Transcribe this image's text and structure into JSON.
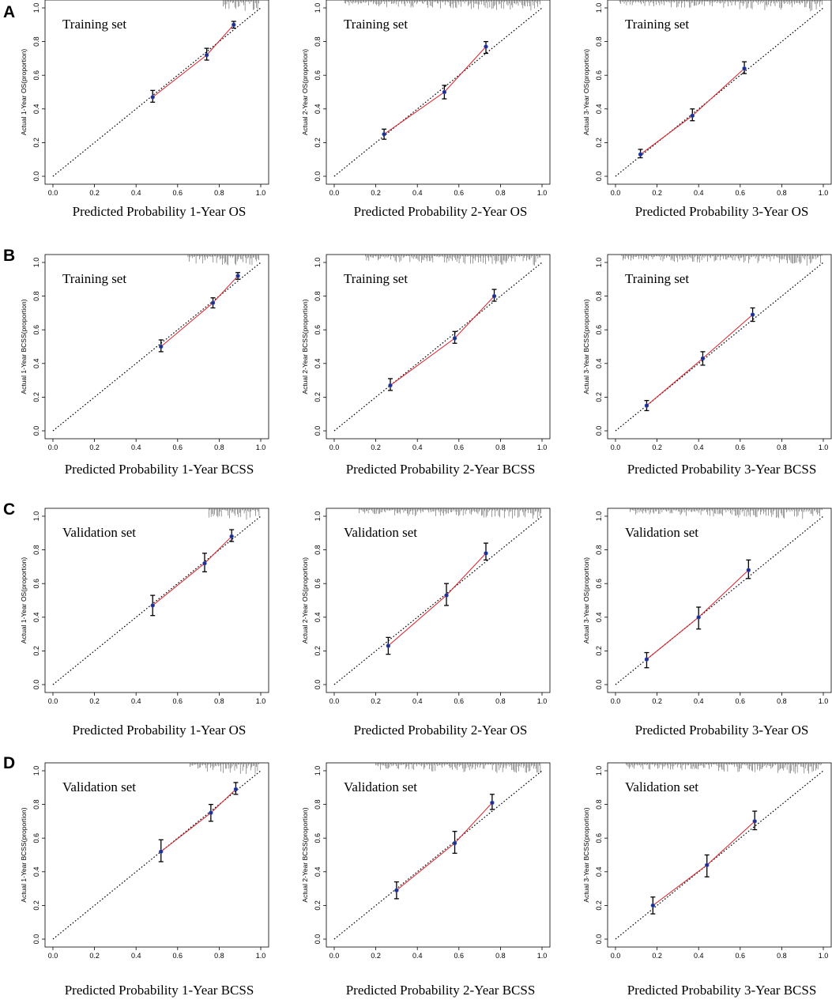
{
  "chart_data": [
    {
      "row": "A",
      "col": 0,
      "type": "line",
      "title": "Training set",
      "xlabel": "Predicted  Probability 1-Year OS",
      "ylabel": "Actual 1-Year OS(proportion)",
      "xlim": [
        0,
        1
      ],
      "ylim": [
        0,
        1
      ],
      "x": [
        0.48,
        0.74,
        0.87
      ],
      "y": [
        0.47,
        0.72,
        0.9
      ],
      "err_low": [
        0.44,
        0.69,
        0.88
      ],
      "err_high": [
        0.51,
        0.76,
        0.92
      ],
      "rug_from": 0.82
    },
    {
      "row": "A",
      "col": 1,
      "type": "line",
      "title": "Training set",
      "xlabel": "Predicted  Probability 2-Year OS",
      "ylabel": "Actual 2-Year OS(proportion)",
      "xlim": [
        0,
        1
      ],
      "ylim": [
        0,
        1
      ],
      "x": [
        0.24,
        0.53,
        0.73
      ],
      "y": [
        0.25,
        0.5,
        0.77
      ],
      "err_low": [
        0.22,
        0.46,
        0.73
      ],
      "err_high": [
        0.28,
        0.54,
        0.8
      ],
      "rug_from": 0.05
    },
    {
      "row": "A",
      "col": 2,
      "type": "line",
      "title": "Training set",
      "xlabel": "Predicted  Probability 3-Year OS",
      "ylabel": "Actual 3-Year OS(proportion)",
      "xlim": [
        0,
        1
      ],
      "ylim": [
        0,
        1
      ],
      "x": [
        0.12,
        0.37,
        0.62
      ],
      "y": [
        0.13,
        0.36,
        0.64
      ],
      "err_low": [
        0.11,
        0.33,
        0.61
      ],
      "err_high": [
        0.16,
        0.4,
        0.68
      ],
      "rug_from": 0.02
    },
    {
      "row": "B",
      "col": 0,
      "type": "line",
      "title": "Training set",
      "xlabel": "Predicted  Probability 1-Year BCSS",
      "ylabel": "Actual 1-Year BCSS(proportion)",
      "xlim": [
        0,
        1
      ],
      "ylim": [
        0,
        1
      ],
      "x": [
        0.52,
        0.77,
        0.89
      ],
      "y": [
        0.5,
        0.76,
        0.92
      ],
      "err_low": [
        0.47,
        0.73,
        0.9
      ],
      "err_high": [
        0.54,
        0.79,
        0.94
      ],
      "rug_from": 0.65
    },
    {
      "row": "B",
      "col": 1,
      "type": "line",
      "title": "Training set",
      "xlabel": "Predicted  Probability 2-Year BCSS",
      "ylabel": "Actual 2-Year BCSS(proportion)",
      "xlim": [
        0,
        1
      ],
      "ylim": [
        0,
        1
      ],
      "x": [
        0.27,
        0.58,
        0.77
      ],
      "y": [
        0.27,
        0.55,
        0.8
      ],
      "err_low": [
        0.24,
        0.52,
        0.77
      ],
      "err_high": [
        0.31,
        0.59,
        0.84
      ],
      "rug_from": 0.15
    },
    {
      "row": "B",
      "col": 2,
      "type": "line",
      "title": "Training set",
      "xlabel": "Predicted  Probability 3-Year BCSS",
      "ylabel": "Actual 3-Year BCSS(proportion)",
      "xlim": [
        0,
        1
      ],
      "ylim": [
        0,
        1
      ],
      "x": [
        0.15,
        0.42,
        0.66
      ],
      "y": [
        0.15,
        0.43,
        0.69
      ],
      "err_low": [
        0.12,
        0.39,
        0.65
      ],
      "err_high": [
        0.18,
        0.47,
        0.73
      ],
      "rug_from": 0.03
    },
    {
      "row": "C",
      "col": 0,
      "type": "line",
      "title": "Validation set",
      "xlabel": "Predicted  Probability 1-Year OS",
      "ylabel": "Actual 1-Year OS(proportion)",
      "xlim": [
        0,
        1
      ],
      "ylim": [
        0,
        1
      ],
      "x": [
        0.48,
        0.73,
        0.86
      ],
      "y": [
        0.47,
        0.72,
        0.88
      ],
      "err_low": [
        0.41,
        0.67,
        0.85
      ],
      "err_high": [
        0.53,
        0.78,
        0.92
      ],
      "rug_from": 0.75
    },
    {
      "row": "C",
      "col": 1,
      "type": "line",
      "title": "Validation set",
      "xlabel": "Predicted  Probability 2-Year OS",
      "ylabel": "Actual 2-Year OS(proportion)",
      "xlim": [
        0,
        1
      ],
      "ylim": [
        0,
        1
      ],
      "x": [
        0.26,
        0.54,
        0.73
      ],
      "y": [
        0.23,
        0.53,
        0.78
      ],
      "err_low": [
        0.18,
        0.47,
        0.74
      ],
      "err_high": [
        0.28,
        0.6,
        0.84
      ],
      "rug_from": 0.12
    },
    {
      "row": "C",
      "col": 2,
      "type": "line",
      "title": "Validation set",
      "xlabel": "Predicted  Probability 3-Year OS",
      "ylabel": "Actual 3-Year OS(proportion)",
      "xlim": [
        0,
        1
      ],
      "ylim": [
        0,
        1
      ],
      "x": [
        0.15,
        0.4,
        0.64
      ],
      "y": [
        0.15,
        0.4,
        0.68
      ],
      "err_low": [
        0.1,
        0.33,
        0.63
      ],
      "err_high": [
        0.19,
        0.46,
        0.74
      ],
      "rug_from": 0.07
    },
    {
      "row": "D",
      "col": 0,
      "type": "line",
      "title": "Validation set",
      "xlabel": "Predicted  Probability 1-Year BCSS",
      "ylabel": "Actual 1-Year BCSS(proportion)",
      "xlim": [
        0,
        1
      ],
      "ylim": [
        0,
        1
      ],
      "x": [
        0.52,
        0.76,
        0.88
      ],
      "y": [
        0.52,
        0.75,
        0.89
      ],
      "err_low": [
        0.46,
        0.7,
        0.86
      ],
      "err_high": [
        0.59,
        0.8,
        0.93
      ],
      "rug_from": 0.66
    },
    {
      "row": "D",
      "col": 1,
      "type": "line",
      "title": "Validation set",
      "xlabel": "Predicted  Probability 2-Year BCSS",
      "ylabel": "Actual 2-Year BCSS(proportion)",
      "xlim": [
        0,
        1
      ],
      "ylim": [
        0,
        1
      ],
      "x": [
        0.3,
        0.58,
        0.76
      ],
      "y": [
        0.29,
        0.57,
        0.81
      ],
      "err_low": [
        0.24,
        0.51,
        0.77
      ],
      "err_high": [
        0.34,
        0.64,
        0.86
      ],
      "rug_from": 0.2
    },
    {
      "row": "D",
      "col": 2,
      "type": "line",
      "title": "Validation set",
      "xlabel": "Predicted  Probability 3-Year BCSS",
      "ylabel": "Actual 3-Year BCSS(proportion)",
      "xlim": [
        0,
        1
      ],
      "ylim": [
        0,
        1
      ],
      "x": [
        0.18,
        0.44,
        0.67
      ],
      "y": [
        0.2,
        0.44,
        0.7
      ],
      "err_low": [
        0.15,
        0.37,
        0.65
      ],
      "err_high": [
        0.25,
        0.5,
        0.76
      ],
      "rug_from": 0.05
    }
  ],
  "panel_letters": [
    "A",
    "B",
    "C",
    "D"
  ],
  "tick_labels": [
    "0.0",
    "0.2",
    "0.4",
    "0.6",
    "0.8",
    "1.0"
  ],
  "colors": {
    "calibration_line": "#e0202a",
    "point": "#1c2e8a",
    "diagonal": "#000000"
  }
}
